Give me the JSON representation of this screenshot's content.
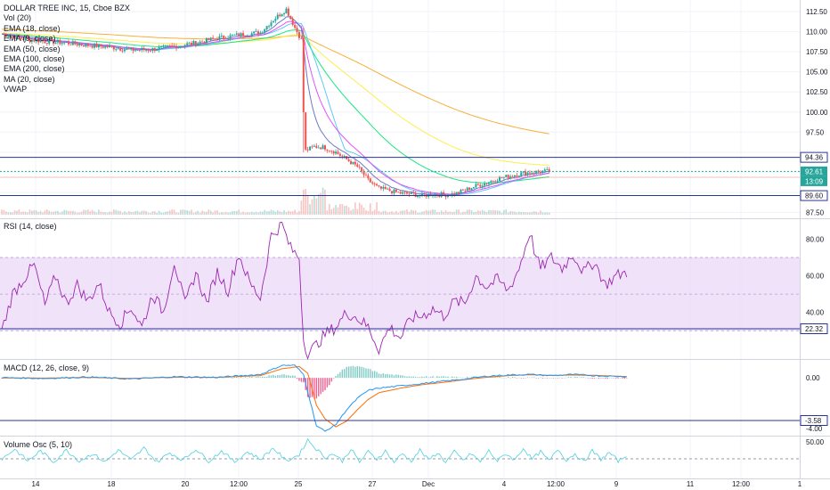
{
  "symbol": {
    "title": "DOLLAR TREE INC, 15, Cboe BZX"
  },
  "indicators": [
    "Vol (20)",
    "EMA (18, close)",
    "EMA (9, close)",
    "EMA (50, close)",
    "EMA (100, close)",
    "EMA (200, close)",
    "MA (20, close)",
    "VWAP"
  ],
  "panes": {
    "rsi": {
      "title": "RSI (14, close)",
      "ticks": [
        "80.00",
        "60.00",
        "40.00"
      ],
      "level_label": "22.32"
    },
    "macd": {
      "title": "MACD (12, 26, close, 9)",
      "ticks": [
        "0.00",
        "-4.00"
      ],
      "level_label": "-3.58"
    },
    "volosc": {
      "title": "Volume Osc (5, 10)",
      "ticks": [
        "50.00"
      ]
    }
  },
  "price_axis": {
    "ticks": [
      "112.50",
      "110.00",
      "107.50",
      "105.00",
      "102.50",
      "100.00",
      "97.50",
      "87.50"
    ],
    "tags": [
      "94.36",
      "92.61",
      "13:09",
      "89.60"
    ]
  },
  "time_axis": {
    "labels": [
      "14",
      "18",
      "20",
      "12:00",
      "25",
      "27",
      "Dec",
      "4",
      "12:00",
      "9",
      "11",
      "12:00",
      "1"
    ]
  },
  "colors": {
    "candle_up": "#26a69a",
    "candle_down": "#ef5350",
    "rsi": "#9c27b0",
    "rsi_band": "#e9d6f5",
    "macd_line": "#2196f3",
    "macd_signal": "#ff6d00",
    "hist_neg": "#f06292",
    "volosc": "#4dd0e1",
    "ema9": "#5c6bc0",
    "ema18": "#e040fb",
    "ema50": "#4fc3f7",
    "ema100": "#ffeb3b",
    "ema200": "#00e676",
    "ma20": "#f5a623",
    "hline": "#283593",
    "price_line": "#26a69a"
  },
  "chart_data": {
    "type": "candlestick",
    "title": "DOLLAR TREE INC, 15, Cboe BZX",
    "y_range": [
      87.0,
      113.5
    ],
    "keypoints_close": [
      [
        0,
        109.7
      ],
      [
        10,
        109.1
      ],
      [
        20,
        108.8
      ],
      [
        30,
        108.6
      ],
      [
        40,
        108.3
      ],
      [
        50,
        108.1
      ],
      [
        60,
        107.7
      ],
      [
        70,
        107.8
      ],
      [
        80,
        108.2
      ],
      [
        90,
        108.6
      ],
      [
        100,
        109.2
      ],
      [
        110,
        109.6
      ],
      [
        120,
        109.9
      ],
      [
        126,
        111.5
      ],
      [
        132,
        112.8
      ],
      [
        136,
        110.5
      ],
      [
        139,
        109.0
      ],
      [
        140,
        100.0
      ],
      [
        141,
        95.2
      ],
      [
        145,
        95.7
      ],
      [
        150,
        95.6
      ],
      [
        155,
        95.0
      ],
      [
        160,
        94.1
      ],
      [
        165,
        93.2
      ],
      [
        170,
        91.5
      ],
      [
        175,
        90.5
      ],
      [
        180,
        90.2
      ],
      [
        185,
        89.9
      ],
      [
        190,
        89.8
      ],
      [
        195,
        89.6
      ],
      [
        200,
        89.8
      ],
      [
        205,
        89.7
      ],
      [
        210,
        89.8
      ],
      [
        215,
        90.3
      ],
      [
        220,
        90.8
      ],
      [
        225,
        91.2
      ],
      [
        230,
        91.7
      ],
      [
        235,
        92.0
      ],
      [
        240,
        92.3
      ],
      [
        245,
        92.5
      ],
      [
        250,
        92.6
      ],
      [
        254,
        92.61
      ]
    ],
    "horizontal_levels": [
      94.36,
      92.61,
      89.6
    ],
    "rsi": {
      "range": [
        15,
        90
      ],
      "band": [
        30,
        70
      ],
      "keypoints": [
        [
          0,
          30
        ],
        [
          5,
          50
        ],
        [
          10,
          58
        ],
        [
          15,
          66
        ],
        [
          20,
          44
        ],
        [
          25,
          60
        ],
        [
          30,
          45
        ],
        [
          35,
          55
        ],
        [
          40,
          46
        ],
        [
          45,
          56
        ],
        [
          50,
          40
        ],
        [
          55,
          34
        ],
        [
          60,
          43
        ],
        [
          65,
          32
        ],
        [
          70,
          50
        ],
        [
          75,
          40
        ],
        [
          80,
          68
        ],
        [
          85,
          44
        ],
        [
          90,
          62
        ],
        [
          95,
          45
        ],
        [
          100,
          62
        ],
        [
          105,
          52
        ],
        [
          110,
          72
        ],
        [
          115,
          56
        ],
        [
          120,
          48
        ],
        [
          125,
          82
        ],
        [
          130,
          88
        ],
        [
          134,
          75
        ],
        [
          138,
          70
        ],
        [
          140,
          25
        ],
        [
          142,
          18
        ],
        [
          145,
          21
        ],
        [
          150,
          28
        ],
        [
          155,
          32
        ],
        [
          160,
          40
        ],
        [
          165,
          37
        ],
        [
          170,
          32
        ],
        [
          175,
          20
        ],
        [
          180,
          32
        ],
        [
          185,
          26
        ],
        [
          190,
          37
        ],
        [
          195,
          38
        ],
        [
          200,
          42
        ],
        [
          205,
          38
        ],
        [
          210,
          46
        ],
        [
          215,
          45
        ],
        [
          220,
          60
        ],
        [
          225,
          54
        ],
        [
          230,
          58
        ],
        [
          235,
          52
        ],
        [
          240,
          64
        ],
        [
          242,
          72
        ],
        [
          245,
          84
        ],
        [
          248,
          70
        ],
        [
          250,
          64
        ],
        [
          255,
          70
        ],
        [
          260,
          64
        ],
        [
          265,
          72
        ],
        [
          270,
          62
        ],
        [
          275,
          68
        ],
        [
          280,
          55
        ],
        [
          285,
          60
        ],
        [
          290,
          62
        ]
      ]
    },
    "macd": {
      "range": [
        -5.0,
        1.5
      ],
      "macd_keypoints": [
        [
          0,
          0.02
        ],
        [
          20,
          -0.05
        ],
        [
          40,
          0.08
        ],
        [
          60,
          -0.1
        ],
        [
          80,
          0.1
        ],
        [
          100,
          0.05
        ],
        [
          120,
          0.3
        ],
        [
          130,
          1.1
        ],
        [
          136,
          1.1
        ],
        [
          140,
          0.3
        ],
        [
          143,
          -2.0
        ],
        [
          146,
          -4.2
        ],
        [
          150,
          -4.7
        ],
        [
          155,
          -4.1
        ],
        [
          160,
          -2.8
        ],
        [
          165,
          -1.8
        ],
        [
          170,
          -1.1
        ],
        [
          175,
          -0.9
        ],
        [
          185,
          -0.7
        ],
        [
          195,
          -0.5
        ],
        [
          205,
          -0.3
        ],
        [
          215,
          -0.1
        ],
        [
          225,
          0.15
        ],
        [
          235,
          0.25
        ],
        [
          245,
          0.3
        ],
        [
          255,
          0.2
        ],
        [
          265,
          0.3
        ],
        [
          275,
          0.2
        ],
        [
          290,
          0.1
        ]
      ],
      "signal_keypoints": [
        [
          0,
          0.0
        ],
        [
          20,
          -0.02
        ],
        [
          40,
          0.04
        ],
        [
          60,
          -0.05
        ],
        [
          80,
          0.06
        ],
        [
          100,
          0.04
        ],
        [
          120,
          0.2
        ],
        [
          130,
          0.8
        ],
        [
          138,
          1.0
        ],
        [
          142,
          0.4
        ],
        [
          146,
          -2.4
        ],
        [
          150,
          -3.6
        ],
        [
          155,
          -4.3
        ],
        [
          160,
          -3.8
        ],
        [
          165,
          -2.8
        ],
        [
          170,
          -1.9
        ],
        [
          175,
          -1.3
        ],
        [
          185,
          -0.9
        ],
        [
          195,
          -0.6
        ],
        [
          205,
          -0.4
        ],
        [
          215,
          -0.15
        ],
        [
          225,
          0.05
        ],
        [
          235,
          0.2
        ],
        [
          245,
          0.28
        ],
        [
          255,
          0.22
        ],
        [
          265,
          0.25
        ],
        [
          275,
          0.22
        ],
        [
          290,
          0.12
        ]
      ],
      "level": -3.58
    },
    "volume_osc": {
      "range": [
        -10,
        65
      ],
      "keypoints": [
        [
          0,
          18
        ],
        [
          6,
          40
        ],
        [
          12,
          14
        ],
        [
          18,
          36
        ],
        [
          24,
          12
        ],
        [
          30,
          38
        ],
        [
          36,
          14
        ],
        [
          42,
          30
        ],
        [
          48,
          12
        ],
        [
          54,
          38
        ],
        [
          60,
          16
        ],
        [
          66,
          42
        ],
        [
          72,
          12
        ],
        [
          78,
          32
        ],
        [
          84,
          16
        ],
        [
          90,
          40
        ],
        [
          96,
          14
        ],
        [
          102,
          36
        ],
        [
          108,
          12
        ],
        [
          114,
          34
        ],
        [
          120,
          18
        ],
        [
          126,
          42
        ],
        [
          132,
          14
        ],
        [
          138,
          28
        ],
        [
          142,
          60
        ],
        [
          146,
          40
        ],
        [
          150,
          22
        ],
        [
          154,
          30
        ],
        [
          158,
          14
        ],
        [
          162,
          40
        ],
        [
          166,
          12
        ],
        [
          170,
          34
        ],
        [
          174,
          18
        ],
        [
          178,
          36
        ],
        [
          182,
          12
        ],
        [
          186,
          30
        ],
        [
          190,
          14
        ],
        [
          194,
          38
        ],
        [
          198,
          16
        ],
        [
          202,
          32
        ],
        [
          206,
          12
        ],
        [
          210,
          34
        ],
        [
          214,
          16
        ],
        [
          218,
          30
        ],
        [
          222,
          12
        ],
        [
          226,
          36
        ],
        [
          230,
          14
        ],
        [
          234,
          30
        ],
        [
          238,
          16
        ],
        [
          242,
          42
        ],
        [
          246,
          18
        ],
        [
          250,
          34
        ],
        [
          254,
          14
        ],
        [
          258,
          40
        ],
        [
          262,
          16
        ],
        [
          266,
          30
        ],
        [
          270,
          12
        ],
        [
          274,
          36
        ],
        [
          278,
          18
        ],
        [
          282,
          32
        ],
        [
          286,
          14
        ],
        [
          290,
          26
        ]
      ]
    }
  }
}
